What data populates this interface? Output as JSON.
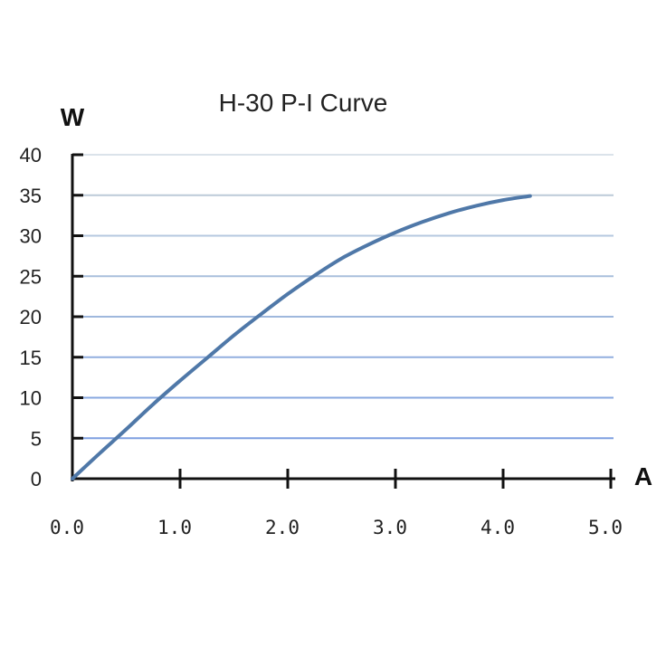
{
  "chart_data": {
    "type": "line",
    "title": "H-30 P-I Curve",
    "xlabel": "A",
    "ylabel": "W",
    "xlim": [
      0,
      5
    ],
    "ylim": [
      0,
      40
    ],
    "x_ticks": [
      "0.0",
      "1.0",
      "2.0",
      "3.0",
      "4.0",
      "5.0"
    ],
    "y_ticks": [
      "0",
      "5",
      "10",
      "15",
      "20",
      "25",
      "30",
      "35",
      "40"
    ],
    "grid": true,
    "series": [
      {
        "x": [
          0.0,
          0.25,
          0.5,
          0.75,
          1.0,
          1.25,
          1.5,
          1.75,
          2.0,
          2.25,
          2.5,
          2.75,
          3.0,
          3.25,
          3.5,
          3.75,
          4.0,
          4.25
        ],
        "y": [
          0.0,
          3.1,
          6.1,
          9.2,
          12.1,
          14.9,
          17.7,
          20.3,
          22.8,
          25.1,
          27.2,
          28.9,
          30.4,
          31.7,
          32.8,
          33.7,
          34.4,
          34.9
        ]
      }
    ],
    "colors": {
      "line": "#4f78a8",
      "gridlines": [
        "#dbe3ea",
        "#bccad8",
        "#b5c8df",
        "#a9bfdc",
        "#9fb8dd",
        "#92afdf",
        "#88a8e0",
        "#7e9fe0"
      ],
      "axis": "#111111"
    }
  }
}
